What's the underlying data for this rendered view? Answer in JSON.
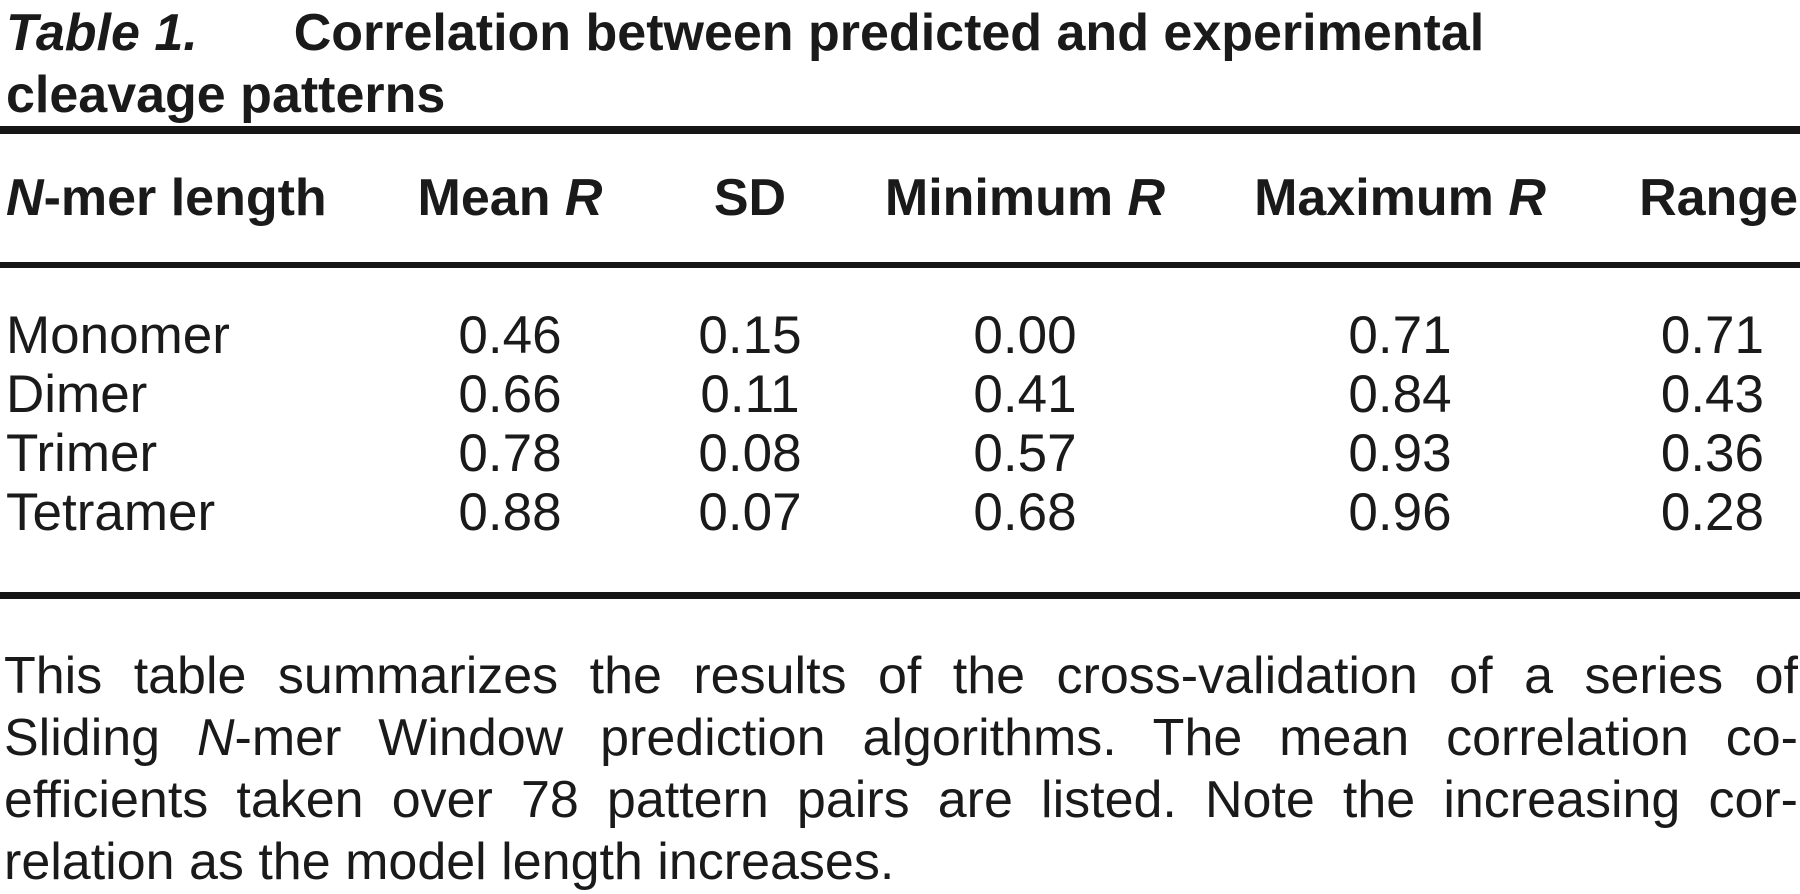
{
  "title": {
    "label": "Table 1.",
    "line1": "Correlation between predicted and experimental",
    "line2": "cleavage patterns"
  },
  "table": {
    "header": {
      "col1_italic": "N",
      "col1_rest": "-mer length",
      "col2_rest": "Mean ",
      "col2_italic": "R",
      "col3": "SD",
      "col4_rest": "Minimum ",
      "col4_italic": "R",
      "col5_rest": "Maximum ",
      "col5_italic": "R",
      "col6": "Range"
    },
    "rows": [
      {
        "name": "Monomer",
        "mean": "0.46",
        "sd": "0.15",
        "min": "0.00",
        "max": "0.71",
        "range": "0.71"
      },
      {
        "name": "Dimer",
        "mean": "0.66",
        "sd": "0.11",
        "min": "0.41",
        "max": "0.84",
        "range": "0.43"
      },
      {
        "name": "Trimer",
        "mean": "0.78",
        "sd": "0.08",
        "min": "0.57",
        "max": "0.93",
        "range": "0.36"
      },
      {
        "name": "Tetramer",
        "mean": "0.88",
        "sd": "0.07",
        "min": "0.68",
        "max": "0.96",
        "range": "0.28"
      }
    ]
  },
  "caption": {
    "line1": "This table summarizes the results of the cross-validation of a series of",
    "line2_pre": "Sliding ",
    "line2_italic": "N",
    "line2_post": "-mer Window prediction algorithms. The mean correlation co-",
    "line3": "efficients taken over 78 pattern pairs are listed. Note the increasing cor-",
    "line4": "relation as the model length increases."
  },
  "colors": {
    "text": "#1a1a1a",
    "rule": "#161616",
    "background": "#ffffff"
  }
}
